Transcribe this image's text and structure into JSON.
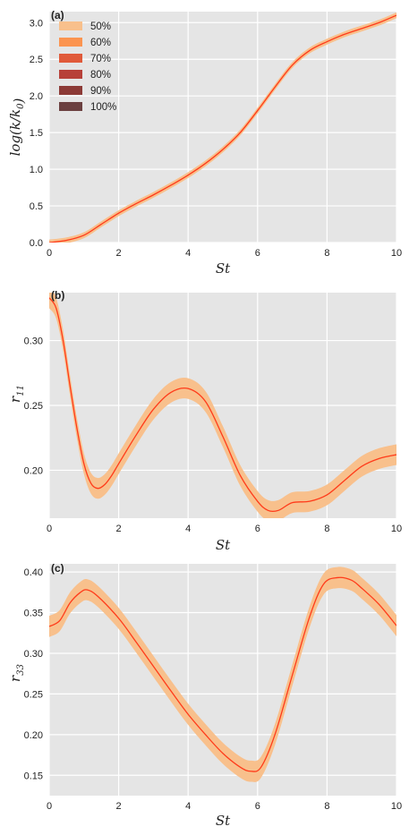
{
  "chart_data": [
    {
      "type": "area",
      "panel_label": "(a)",
      "xlabel": "St",
      "ylabel": "log(k/k0)",
      "xlim": [
        0,
        10
      ],
      "ylim": [
        0,
        3.15
      ],
      "xticks": [
        0,
        2,
        4,
        6,
        8,
        10
      ],
      "xtick_labels": [
        "0",
        "2",
        "4",
        "6",
        "8",
        "10"
      ],
      "yticks": [
        0,
        0.5,
        1,
        1.5,
        2,
        2.5,
        3
      ],
      "ytick_labels": [
        "0.0",
        "0.5",
        "1.0",
        "1.5",
        "2.0",
        "2.5",
        "3.0"
      ],
      "grid": true,
      "legend_position": "top-left",
      "legend": [
        "50%",
        "60%",
        "70%",
        "80%",
        "90%",
        "100%"
      ],
      "x": [
        0,
        0.5,
        1,
        1.5,
        2,
        2.5,
        3,
        3.5,
        4,
        4.5,
        5,
        5.5,
        6,
        6.5,
        7,
        7.5,
        8,
        8.5,
        9,
        9.5,
        10
      ],
      "series": [
        {
          "values": [
            0,
            0.03,
            0.1,
            0.25,
            0.4,
            0.53,
            0.65,
            0.78,
            0.92,
            1.08,
            1.27,
            1.5,
            1.8,
            2.12,
            2.42,
            2.62,
            2.74,
            2.84,
            2.92,
            3.0,
            3.1
          ],
          "band": 0.04
        }
      ]
    },
    {
      "type": "area",
      "panel_label": "(b)",
      "xlabel": "St",
      "ylabel": "r11",
      "xlim": [
        0,
        10
      ],
      "ylim": [
        0.163,
        0.337
      ],
      "xticks": [
        0,
        2,
        4,
        6,
        8,
        10
      ],
      "xtick_labels": [
        "0",
        "2",
        "4",
        "6",
        "8",
        "10"
      ],
      "yticks": [
        0.2,
        0.25,
        0.3
      ],
      "ytick_labels": [
        "0.20",
        "0.25",
        "0.30"
      ],
      "grid": true,
      "x": [
        0,
        0.2,
        0.4,
        0.6,
        0.8,
        1,
        1.2,
        1.4,
        1.6,
        1.8,
        2,
        2.5,
        3,
        3.5,
        4,
        4.5,
        5,
        5.5,
        6,
        6.3,
        6.6,
        7,
        7.5,
        8,
        8.5,
        9,
        9.5,
        10
      ],
      "series": [
        {
          "values": [
            0.333,
            0.325,
            0.3,
            0.265,
            0.232,
            0.205,
            0.19,
            0.186,
            0.189,
            0.196,
            0.205,
            0.227,
            0.247,
            0.26,
            0.263,
            0.253,
            0.226,
            0.196,
            0.176,
            0.169,
            0.169,
            0.175,
            0.176,
            0.181,
            0.192,
            0.203,
            0.209,
            0.212
          ],
          "band": 0.008
        }
      ]
    },
    {
      "type": "area",
      "panel_label": "(c)",
      "xlabel": "St",
      "ylabel": "r33",
      "xlim": [
        0,
        10
      ],
      "ylim": [
        0.125,
        0.41
      ],
      "xticks": [
        0,
        2,
        4,
        6,
        8,
        10
      ],
      "xtick_labels": [
        "0",
        "2",
        "4",
        "6",
        "8",
        "10"
      ],
      "yticks": [
        0.15,
        0.2,
        0.25,
        0.3,
        0.35,
        0.4
      ],
      "ytick_labels": [
        "0.15",
        "0.20",
        "0.25",
        "0.30",
        "0.35",
        "0.40"
      ],
      "grid": true,
      "x": [
        0,
        0.3,
        0.6,
        0.9,
        1.1,
        1.4,
        2,
        2.5,
        3,
        3.5,
        4,
        4.5,
        5,
        5.5,
        5.8,
        6.1,
        6.5,
        7,
        7.5,
        7.9,
        8.3,
        8.7,
        9,
        9.5,
        10
      ],
      "series": [
        {
          "values": [
            0.333,
            0.34,
            0.362,
            0.375,
            0.378,
            0.37,
            0.343,
            0.314,
            0.284,
            0.254,
            0.225,
            0.2,
            0.177,
            0.16,
            0.155,
            0.16,
            0.2,
            0.273,
            0.345,
            0.385,
            0.393,
            0.39,
            0.38,
            0.36,
            0.334
          ],
          "band": 0.013
        }
      ]
    }
  ],
  "band_colors": [
    "#f8c08c",
    "#fb9450",
    "#e05a3a",
    "#b74038",
    "#8c3a36",
    "#6b4040"
  ],
  "line_color": "#ff3b1a",
  "plot_background": "#e5e5e5"
}
